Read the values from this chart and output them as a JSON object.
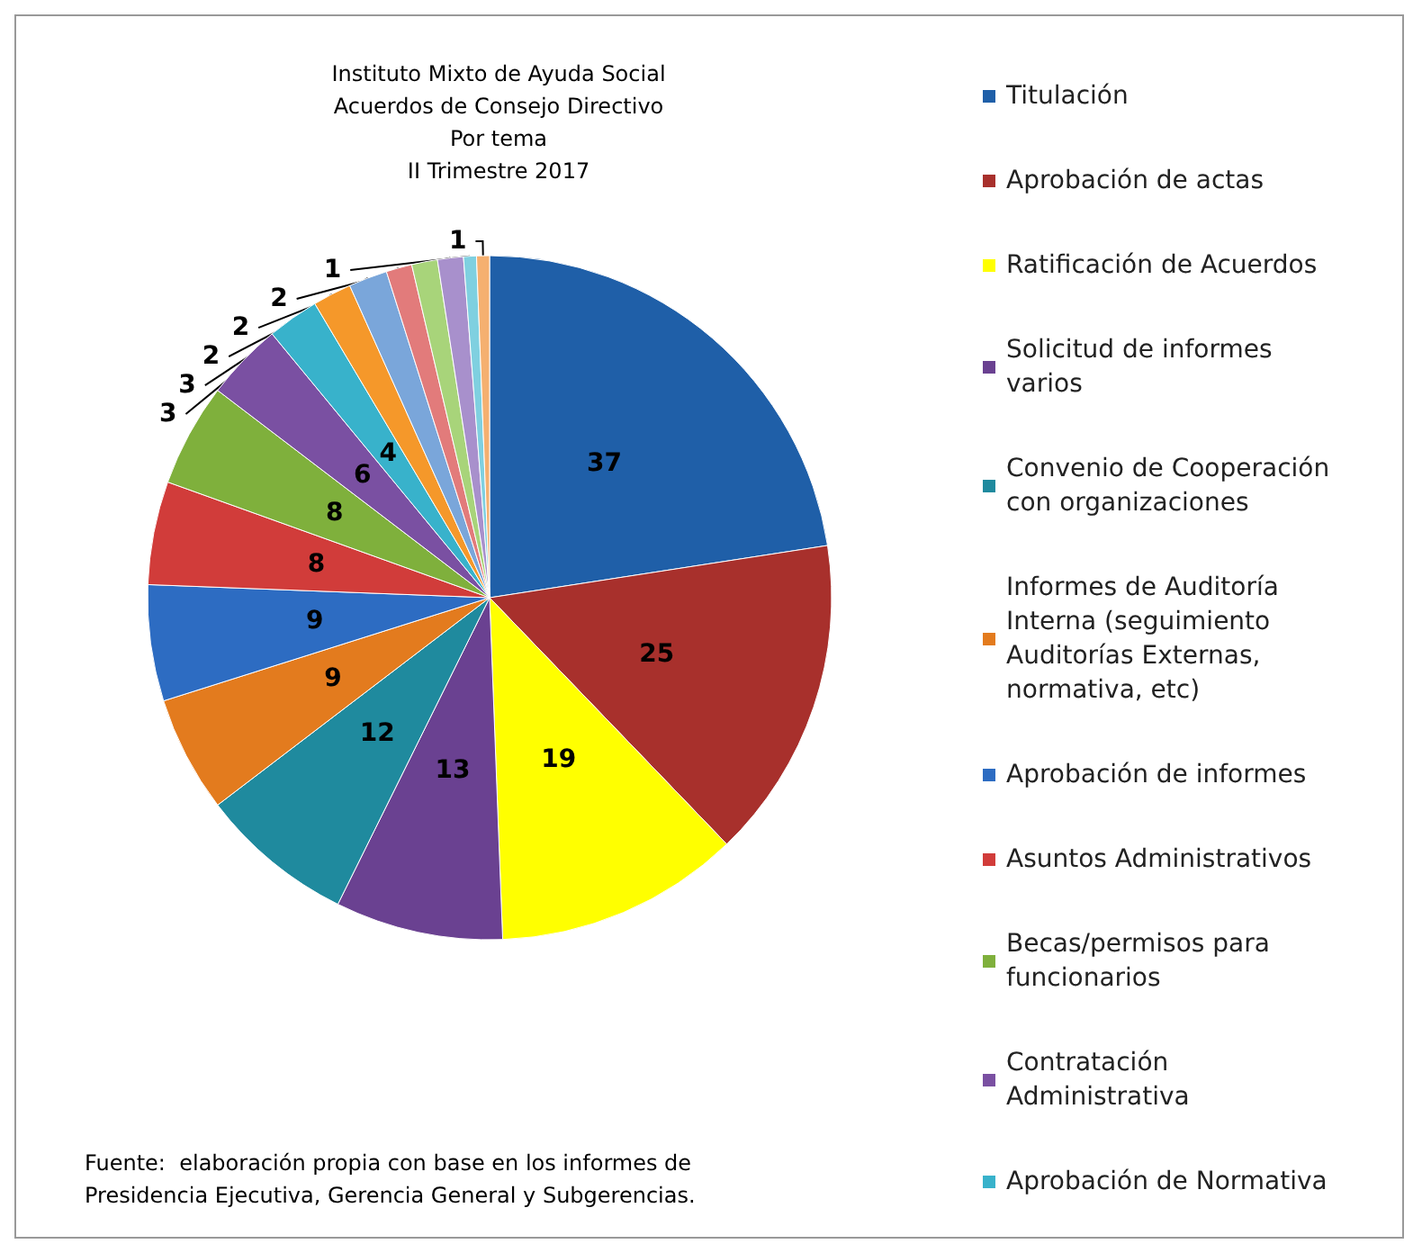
{
  "chart_data": {
    "type": "pie",
    "title": "Instituto Mixto de Ayuda Social\nAcuerdos de Consejo Directivo\nPor tema\nII Trimestre 2017",
    "categories": [
      "Titulación",
      "Aprobación de actas",
      "Ratificación de Acuerdos",
      "Solicitud de informes varios",
      "Convenio de Cooperación con organizaciones",
      "Informes de Auditoría Interna (seguimiento Auditorías Externas, normativa, etc)",
      "Aprobación de informes",
      "Asuntos Administrativos",
      "Becas/permisos para funcionarios",
      "Contratación Administrativa",
      "Aprobación de Normativa",
      null,
      null,
      null,
      null,
      null,
      null,
      null
    ],
    "values": [
      37,
      25,
      19,
      13,
      12,
      9,
      9,
      8,
      8,
      6,
      4,
      3,
      3,
      2,
      2,
      2,
      1,
      1
    ],
    "colors": [
      "#1f5fa8",
      "#a8302c",
      "#ffff00",
      "#6a4191",
      "#1f8a9e",
      "#e37b1e",
      "#2d6cc2",
      "#d13c3a",
      "#7fb03c",
      "#7a50a2",
      "#38b2cb",
      "#f5982a",
      "#7aa6da",
      "#e27b7b",
      "#a8d47a",
      "#a890cc",
      "#7fd0e0",
      "#f5b070"
    ],
    "data_labels": true,
    "legend": "right",
    "annotations": [
      "Fuente:  elaboración propia con base en los informes de Presidencia Ejecutiva, Gerencia General y Subgerencias."
    ]
  }
}
